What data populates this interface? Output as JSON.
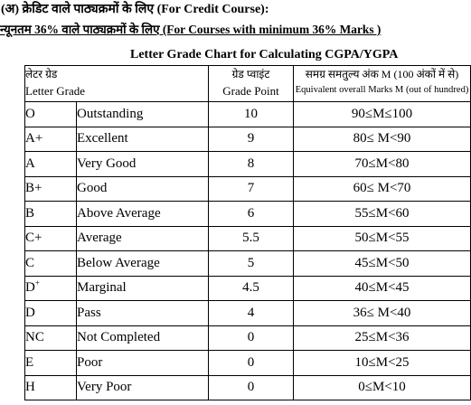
{
  "header": {
    "line1": "(अ)   क्रेडिट वाले पाठ्यक्रमों के लिए (For Credit Course):",
    "line2": "न्यूनतम 36% वाले पाठ्यक्रमों के लिए (For Courses with minimum 36% Marks )",
    "chart_title": "Letter Grade Chart for Calculating CGPA/YGPA"
  },
  "table": {
    "columns": {
      "grade_hi": "लेटर ग्रेड",
      "grade_en": "Letter Grade",
      "point_hi": "ग्रेड प्वाइंट",
      "point_en": "Grade Point",
      "marks_hi": "समग्र समतुल्य अंक M (100 अंकों में से)",
      "marks_en": "Equivalent overall Marks M (out of hundred)"
    },
    "rows": [
      {
        "grade": "O",
        "description": "Outstanding",
        "point": "10",
        "marks": "90≤M≤100"
      },
      {
        "grade": "A+",
        "description": "Excellent",
        "point": "9",
        "marks": "80≤ M<90"
      },
      {
        "grade": "A",
        "description": "Very Good",
        "point": "8",
        "marks": "70≤M<80"
      },
      {
        "grade": "B+",
        "description": "Good",
        "point": "7",
        "marks": "60≤ M<70"
      },
      {
        "grade": "B",
        "description": "Above Average",
        "point": "6",
        "marks": "55≤M<60"
      },
      {
        "grade": "C+",
        "description": "Average",
        "point": "5.5",
        "marks": "50≤M<55"
      },
      {
        "grade": "C",
        "description": "Below Average",
        "point": "5",
        "marks": "45≤M<50"
      },
      {
        "grade": "D",
        "grade_sup": "+",
        "description": "Marginal",
        "point": "4.5",
        "marks": "40≤M<45"
      },
      {
        "grade": "D",
        "description": "Pass",
        "point": "4",
        "marks": "36≤ M<40"
      },
      {
        "grade": "NC",
        "description": "Not Completed",
        "point": "0",
        "marks": "25≤M<36"
      },
      {
        "grade": "E",
        "description": "Poor",
        "point": "0",
        "marks": "10≤M<25"
      },
      {
        "grade": "H",
        "description": "Very Poor",
        "point": "0",
        "marks": "0≤M<10"
      }
    ]
  }
}
